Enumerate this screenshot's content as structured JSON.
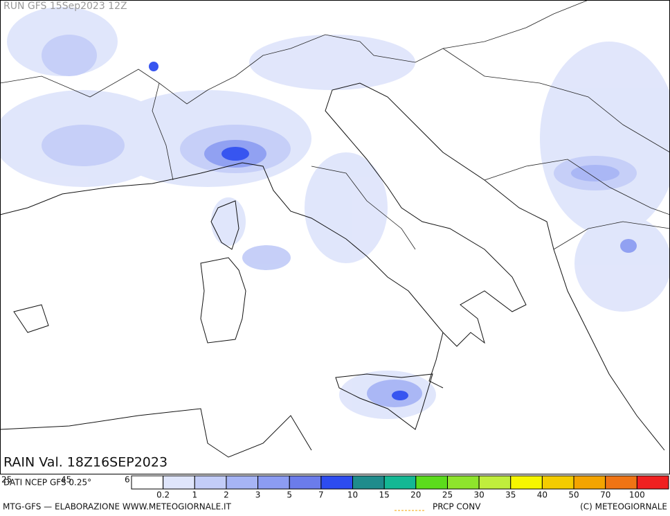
{
  "header": {
    "run": "RUN GFS 15Sep2023 12Z",
    "valid": "RAIN Val. 18Z16SEP2023"
  },
  "axis_labels": [
    "25",
    "45",
    "6"
  ],
  "source": "DATI NCEP GFS 0.25°",
  "legend": {
    "colors": [
      "#ffffff",
      "#dfe5fb",
      "#c3cdf8",
      "#a6b4f5",
      "#8c9cf2",
      "#6b7ceb",
      "#2d4cf0",
      "#1f8c8c",
      "#14b894",
      "#5cdc1c",
      "#8ee42c",
      "#c0ee3c",
      "#f6f600",
      "#f4cc00",
      "#f4a400",
      "#f07414",
      "#f02020"
    ],
    "labels": [
      0.2,
      1,
      2,
      3,
      5,
      7,
      10,
      15,
      20,
      25,
      30,
      35,
      40,
      50,
      70,
      100
    ]
  },
  "footer": {
    "left": "MTG-GFS — ELABORAZIONE WWW.METEOGIORNALE.IT",
    "middle": "PRCP CONV",
    "right": "(C) METEOGIORNALE"
  }
}
